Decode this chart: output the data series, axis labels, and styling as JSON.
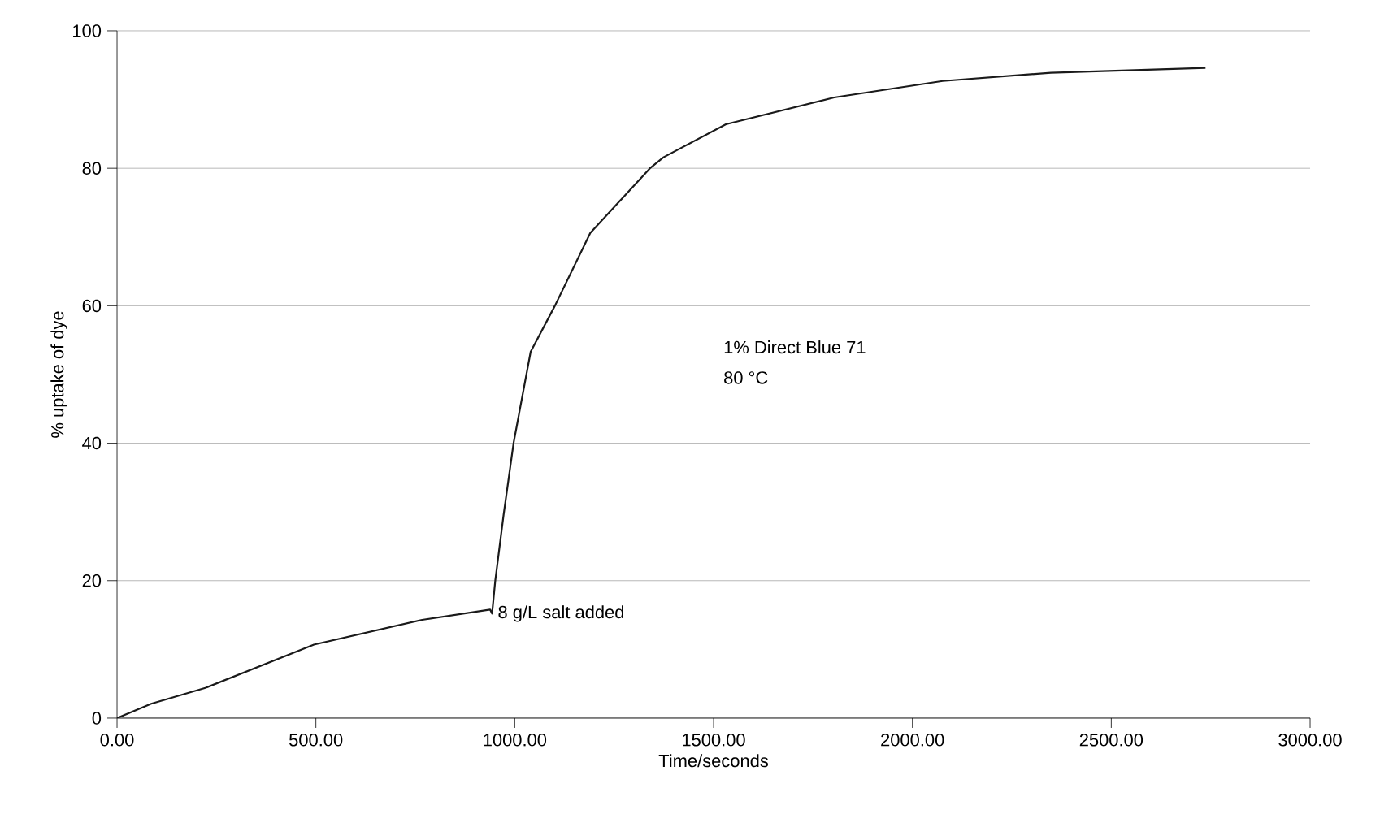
{
  "chart_data": {
    "type": "line",
    "xlabel": "Time/seconds",
    "ylabel": "% uptake of dye",
    "x": [
      0,
      86,
      222,
      495,
      767,
      938,
      943,
      951,
      972,
      997,
      1040,
      1101,
      1190,
      1340,
      1374,
      1531,
      1803,
      2076,
      2348,
      2737
    ],
    "series": [
      {
        "color": "#1a1a1a",
        "values": [
          0,
          2.1,
          4.4,
          10.7,
          14.3,
          15.8,
          15.2,
          20,
          29.6,
          40,
          53.3,
          60,
          70.6,
          80,
          81.6,
          86.4,
          90.3,
          92.7,
          93.9,
          94.6
        ]
      }
    ],
    "xlim": [
      0,
      3000
    ],
    "ylim": [
      0,
      100
    ],
    "xticks": [
      {
        "value": 0,
        "label": "0.00"
      },
      {
        "value": 500,
        "label": "500.00"
      },
      {
        "value": 1000,
        "label": "1000.00"
      },
      {
        "value": 1500,
        "label": "1500.00"
      },
      {
        "value": 2000,
        "label": "2000.00"
      },
      {
        "value": 2500,
        "label": "2500.00"
      },
      {
        "value": 3000,
        "label": "3000.00"
      }
    ],
    "yticks": [
      0,
      20,
      40,
      60,
      80,
      100
    ],
    "grid": "y",
    "marker": "none",
    "line_style": "solid",
    "annotations": [
      {
        "text": "8 g/L salt added",
        "x": 943,
        "y": 15.2
      },
      "1% Direct Blue 71",
      "80 °C"
    ]
  }
}
